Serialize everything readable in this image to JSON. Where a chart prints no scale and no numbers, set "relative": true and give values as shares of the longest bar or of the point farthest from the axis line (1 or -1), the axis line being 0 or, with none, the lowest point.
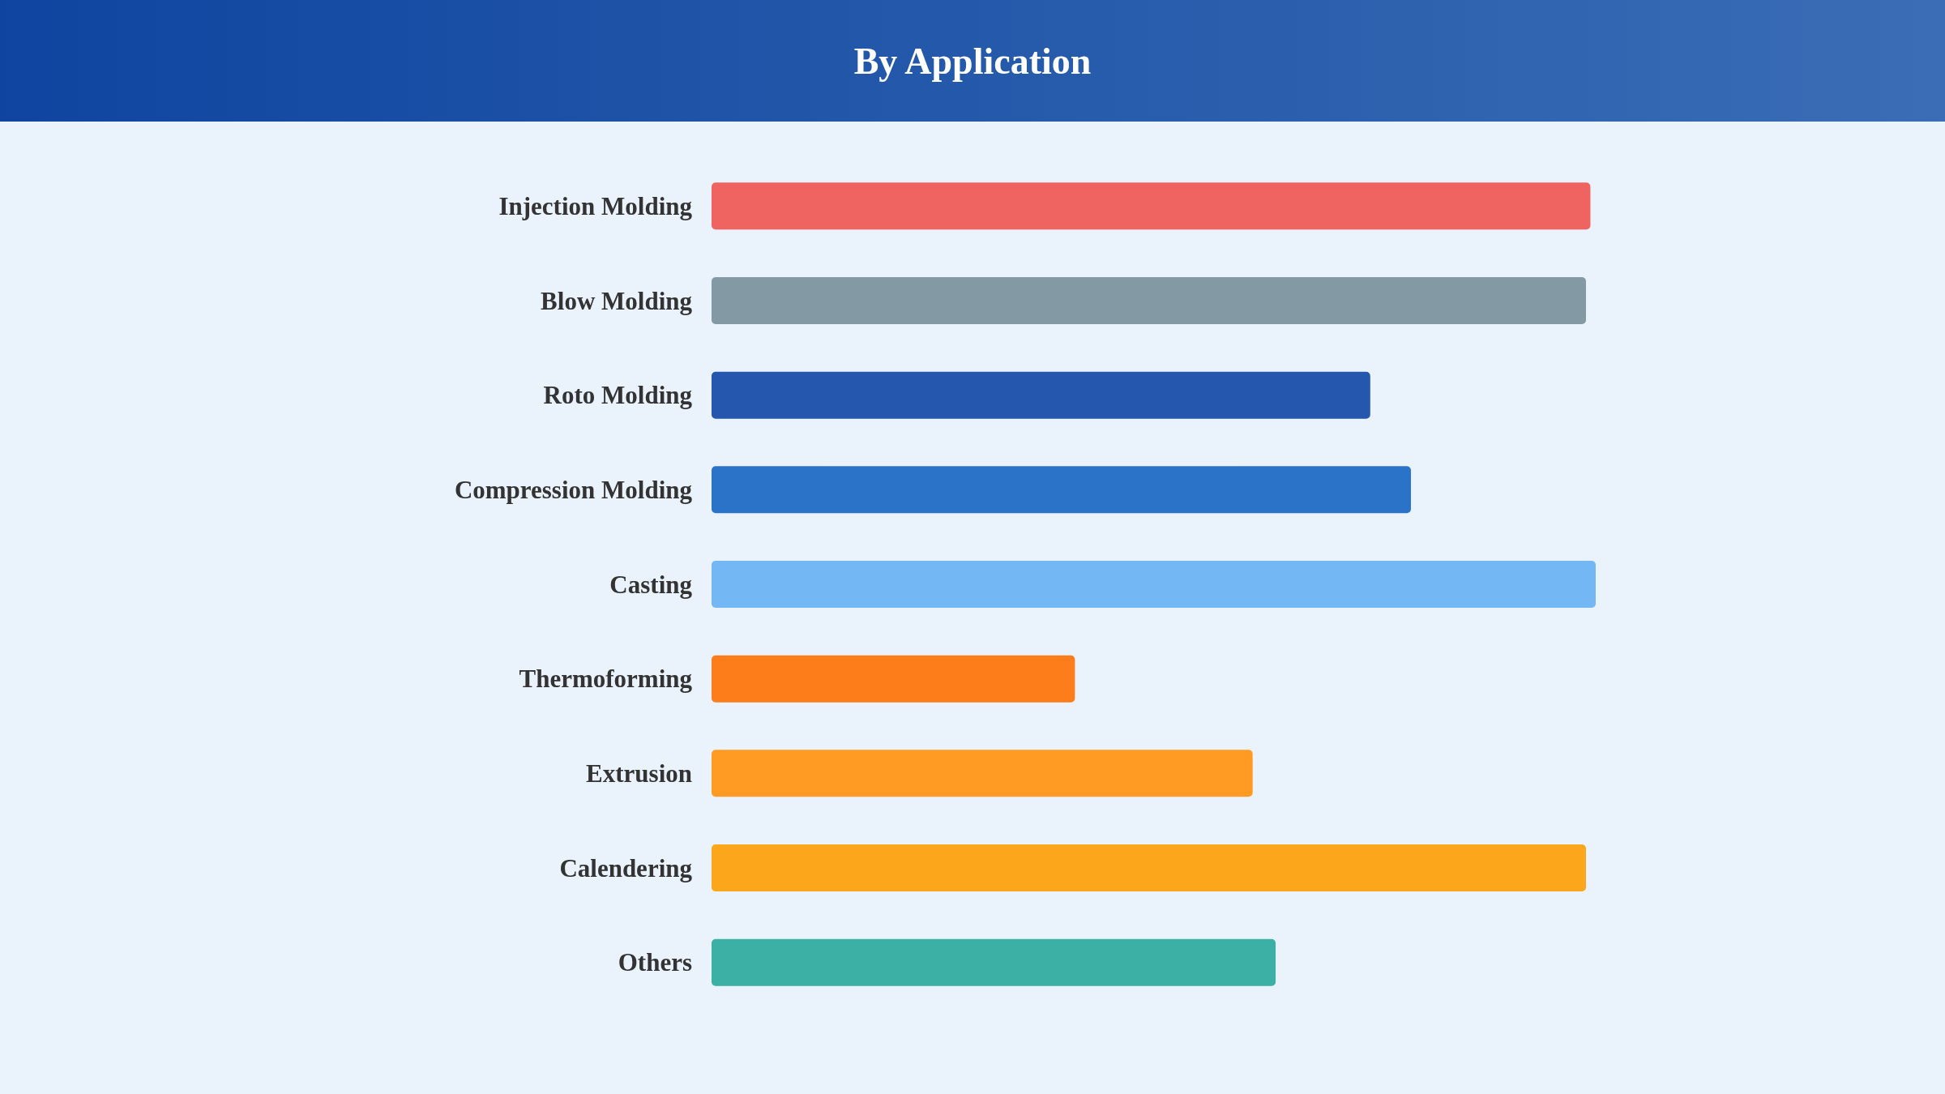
{
  "chart_data": {
    "type": "bar",
    "title": "By Application",
    "orientation": "horizontal",
    "relative": true,
    "categories": [
      "Injection Molding",
      "Blow Molding",
      "Roto Molding",
      "Compression Molding",
      "Casting",
      "Thermoforming",
      "Extrusion",
      "Calendering",
      "Others"
    ],
    "values": [
      0.994,
      0.989,
      0.745,
      0.791,
      1,
      0.411,
      0.612,
      0.989,
      0.638
    ],
    "colors": [
      "#ef6461",
      "#8399a4",
      "#2457ad",
      "#2b73c8",
      "#73b8f5",
      "#fd7d1b",
      "#ff9a22",
      "#fca61c",
      "#3cb0a5"
    ]
  }
}
